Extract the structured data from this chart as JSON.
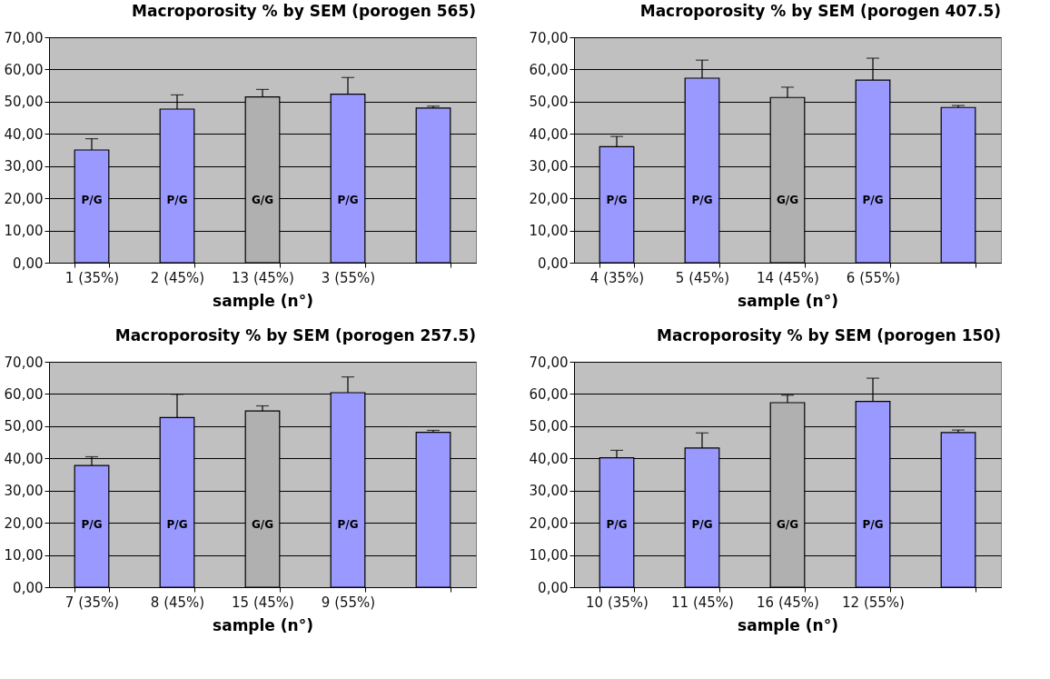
{
  "chart_data": [
    {
      "type": "bar",
      "title": "Macroporosity % by SEM (porogen 565)",
      "xlabel": "sample (n°)",
      "categories": [
        "1 (35%)",
        "2 (45%)",
        "13 (45%)",
        "3 (55%)",
        null
      ],
      "values": [
        35,
        47.7,
        51.5,
        52.3,
        48
      ],
      "errors": [
        [
          35,
          38.5
        ],
        [
          47.7,
          52.1
        ],
        [
          51.5,
          53.8
        ],
        [
          52.3,
          57.5
        ],
        [
          48,
          48.6
        ]
      ],
      "colors": [
        "#9999ff",
        "#9999ff",
        "#b0b0b0",
        "#9999ff",
        "#9999ff"
      ],
      "ylim": [
        0,
        70
      ],
      "yticks": [
        {
          "value": 0,
          "label": "0,00"
        },
        {
          "value": 10,
          "label": "10,00"
        },
        {
          "value": 20,
          "label": "20,00"
        },
        {
          "value": 30,
          "label": "30,00"
        },
        {
          "value": 40,
          "label": "40,00"
        },
        {
          "value": 50,
          "label": "50,00"
        },
        {
          "value": 60,
          "label": "60,00"
        },
        {
          "value": 70,
          "label": "70,00"
        }
      ],
      "grid": "y",
      "annotations": [
        "P/G",
        "P/G",
        "G/G",
        "P/G"
      ]
    },
    {
      "type": "bar",
      "title": "Macroporosity % by SEM (porogen 407.5)",
      "xlabel": "sample (n°)",
      "categories": [
        "4 (35%)",
        "5 (45%)",
        "14 (45%)",
        "6 (55%)",
        null
      ],
      "values": [
        36,
        57.3,
        51.3,
        56.7,
        48.2
      ],
      "errors": [
        [
          36,
          39.2
        ],
        [
          57.3,
          62.9
        ],
        [
          51.3,
          54.5
        ],
        [
          56.7,
          63.5
        ],
        [
          48.2,
          48.8
        ]
      ],
      "colors": [
        "#9999ff",
        "#9999ff",
        "#b0b0b0",
        "#9999ff",
        "#9999ff"
      ],
      "ylim": [
        0,
        70
      ],
      "yticks": [
        {
          "value": 0,
          "label": "0,00"
        },
        {
          "value": 10,
          "label": "10,00"
        },
        {
          "value": 20,
          "label": "20,00"
        },
        {
          "value": 30,
          "label": "30,00"
        },
        {
          "value": 40,
          "label": "40,00"
        },
        {
          "value": 50,
          "label": "50,00"
        },
        {
          "value": 60,
          "label": "60,00"
        },
        {
          "value": 70,
          "label": "70,00"
        }
      ],
      "grid": "y",
      "annotations": [
        "P/G",
        "P/G",
        "G/G",
        "P/G"
      ]
    },
    {
      "type": "bar",
      "title": "Macroporosity % by SEM (porogen 257.5)",
      "xlabel": "sample (n°)",
      "categories": [
        "7 (35%)",
        "8 (45%)",
        "15 (45%)",
        "9 (55%)",
        null
      ],
      "values": [
        37.8,
        52.7,
        54.7,
        60.4,
        48.1
      ],
      "errors": [
        [
          37.8,
          40.5
        ],
        [
          52.7,
          59.9
        ],
        [
          54.7,
          56.3
        ],
        [
          60.4,
          65.3
        ],
        [
          48.1,
          48.7
        ]
      ],
      "colors": [
        "#9999ff",
        "#9999ff",
        "#b0b0b0",
        "#9999ff",
        "#9999ff"
      ],
      "ylim": [
        0,
        70
      ],
      "yticks": [
        {
          "value": 0,
          "label": "0,00"
        },
        {
          "value": 10,
          "label": "10,00"
        },
        {
          "value": 20,
          "label": "20,00"
        },
        {
          "value": 30,
          "label": "30,00"
        },
        {
          "value": 40,
          "label": "40,00"
        },
        {
          "value": 50,
          "label": "50,00"
        },
        {
          "value": 60,
          "label": "60,00"
        },
        {
          "value": 70,
          "label": "70,00"
        }
      ],
      "grid": "y",
      "annotations": [
        "P/G",
        "P/G",
        "G/G",
        "P/G"
      ]
    },
    {
      "type": "bar",
      "title": "Macroporosity % by SEM (porogen 150)",
      "xlabel": "sample (n°)",
      "categories": [
        "10 (35%)",
        "11 (45%)",
        "16 (45%)",
        "12 (55%)",
        null
      ],
      "values": [
        40.2,
        43.2,
        57.3,
        57.7,
        48
      ],
      "errors": [
        [
          40.2,
          42.5
        ],
        [
          43.2,
          47.9
        ],
        [
          57.3,
          59.6
        ],
        [
          57.7,
          64.9
        ],
        [
          48,
          48.8
        ]
      ],
      "colors": [
        "#9999ff",
        "#9999ff",
        "#b0b0b0",
        "#9999ff",
        "#9999ff"
      ],
      "ylim": [
        0,
        70
      ],
      "yticks": [
        {
          "value": 0,
          "label": "0,00"
        },
        {
          "value": 10,
          "label": "10,00"
        },
        {
          "value": 20,
          "label": "20,00"
        },
        {
          "value": 30,
          "label": "30,00"
        },
        {
          "value": 40,
          "label": "40,00"
        },
        {
          "value": 50,
          "label": "50,00"
        },
        {
          "value": 60,
          "label": "60,00"
        },
        {
          "value": 70,
          "label": "70,00"
        }
      ],
      "grid": "y",
      "annotations": [
        "P/G",
        "P/G",
        "G/G",
        "P/G"
      ]
    }
  ]
}
